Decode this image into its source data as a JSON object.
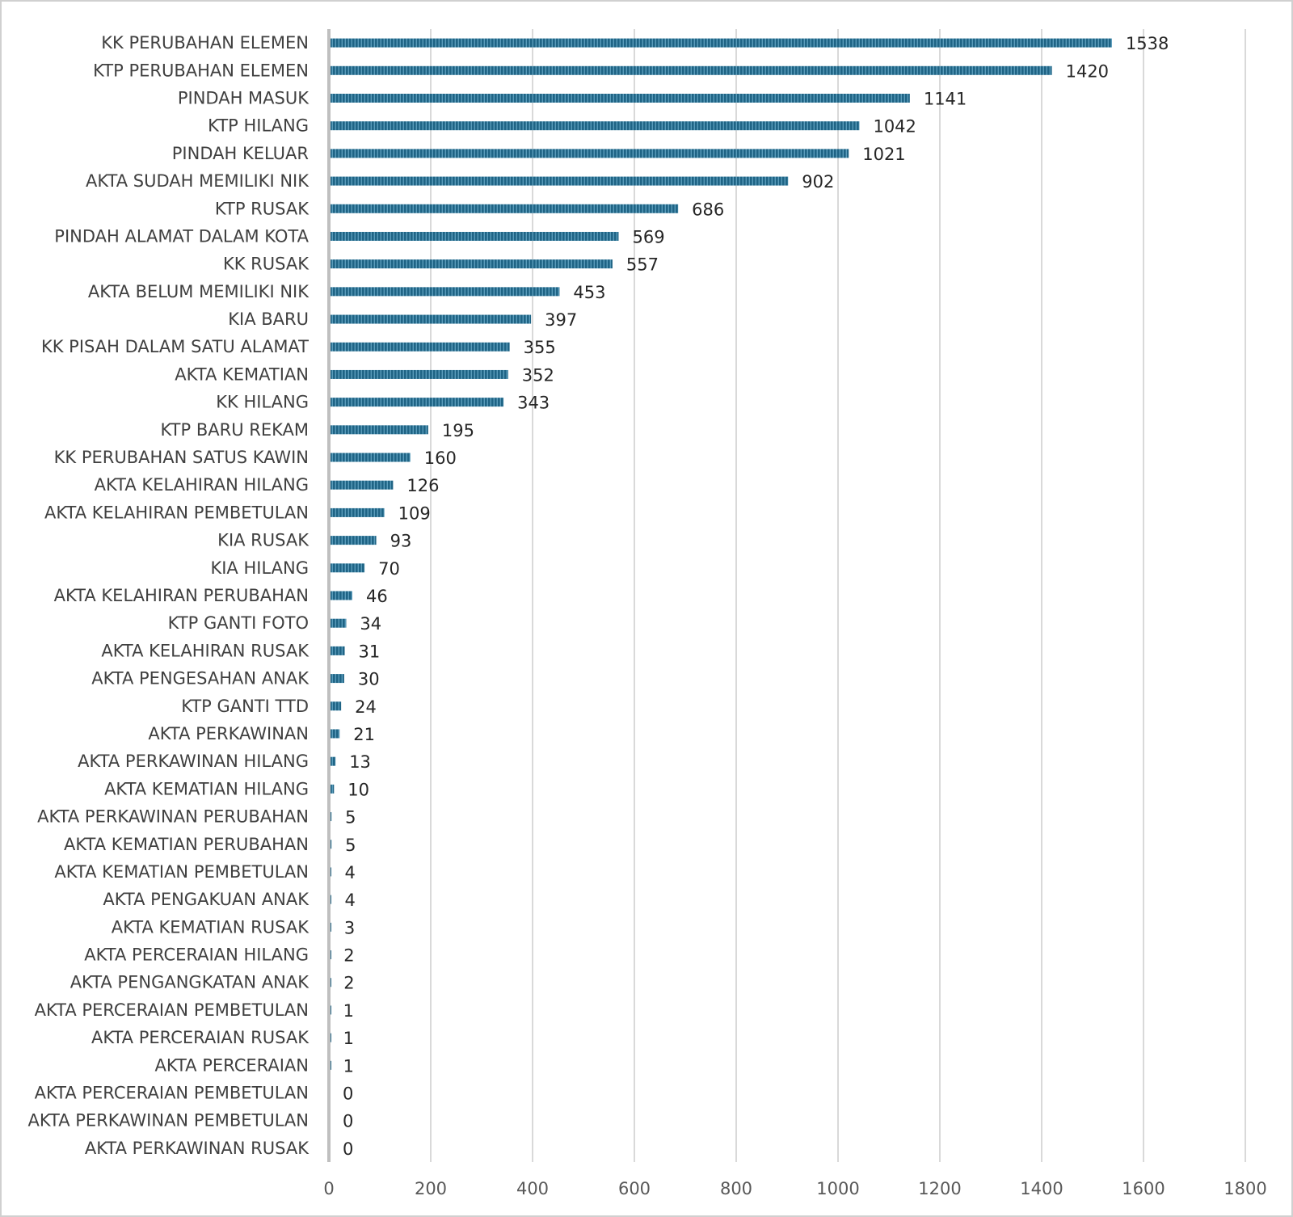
{
  "chart_data": {
    "type": "bar",
    "orientation": "horizontal",
    "title": "",
    "xlabel": "",
    "ylabel": "",
    "xlim": [
      0,
      1800
    ],
    "xticks": [
      0,
      200,
      400,
      600,
      800,
      1000,
      1200,
      1400,
      1600,
      1800
    ],
    "grid": true,
    "legend": "none",
    "bar_color": "#1f6485",
    "bar_stripe_color": "#5a9cbb",
    "categories": [
      "KK PERUBAHAN ELEMEN",
      "KTP PERUBAHAN ELEMEN",
      "PINDAH MASUK",
      "KTP HILANG",
      "PINDAH KELUAR",
      "AKTA SUDAH MEMILIKI NIK",
      "KTP RUSAK",
      "PINDAH ALAMAT DALAM KOTA",
      "KK RUSAK",
      "AKTA BELUM MEMILIKI NIK",
      "KIA BARU",
      "KK PISAH DALAM SATU ALAMAT",
      "AKTA KEMATIAN",
      "KK HILANG",
      "KTP BARU REKAM",
      "KK PERUBAHAN SATUS KAWIN",
      "AKTA KELAHIRAN HILANG",
      "AKTA KELAHIRAN PEMBETULAN",
      "KIA RUSAK",
      "KIA HILANG",
      "AKTA KELAHIRAN PERUBAHAN",
      "KTP GANTI FOTO",
      "AKTA KELAHIRAN RUSAK",
      "AKTA PENGESAHAN ANAK",
      "KTP GANTI TTD",
      "AKTA PERKAWINAN",
      "AKTA PERKAWINAN HILANG",
      "AKTA KEMATIAN HILANG",
      "AKTA PERKAWINAN PERUBAHAN",
      "AKTA KEMATIAN PERUBAHAN",
      "AKTA KEMATIAN PEMBETULAN",
      "AKTA PENGAKUAN ANAK",
      "AKTA KEMATIAN RUSAK",
      "AKTA PERCERAIAN HILANG",
      "AKTA PENGANGKATAN ANAK",
      "AKTA PERCERAIAN PEMBETULAN",
      "AKTA PERCERAIAN RUSAK",
      "AKTA PERCERAIAN",
      "AKTA PERCERAIAN PEMBETULAN",
      "AKTA PERKAWINAN PEMBETULAN",
      "AKTA PERKAWINAN RUSAK"
    ],
    "values": [
      1538,
      1420,
      1141,
      1042,
      1021,
      902,
      686,
      569,
      557,
      453,
      397,
      355,
      352,
      343,
      195,
      160,
      126,
      109,
      93,
      70,
      46,
      34,
      31,
      30,
      24,
      21,
      13,
      10,
      5,
      5,
      4,
      4,
      3,
      2,
      2,
      1,
      1,
      1,
      0,
      0,
      0
    ]
  }
}
